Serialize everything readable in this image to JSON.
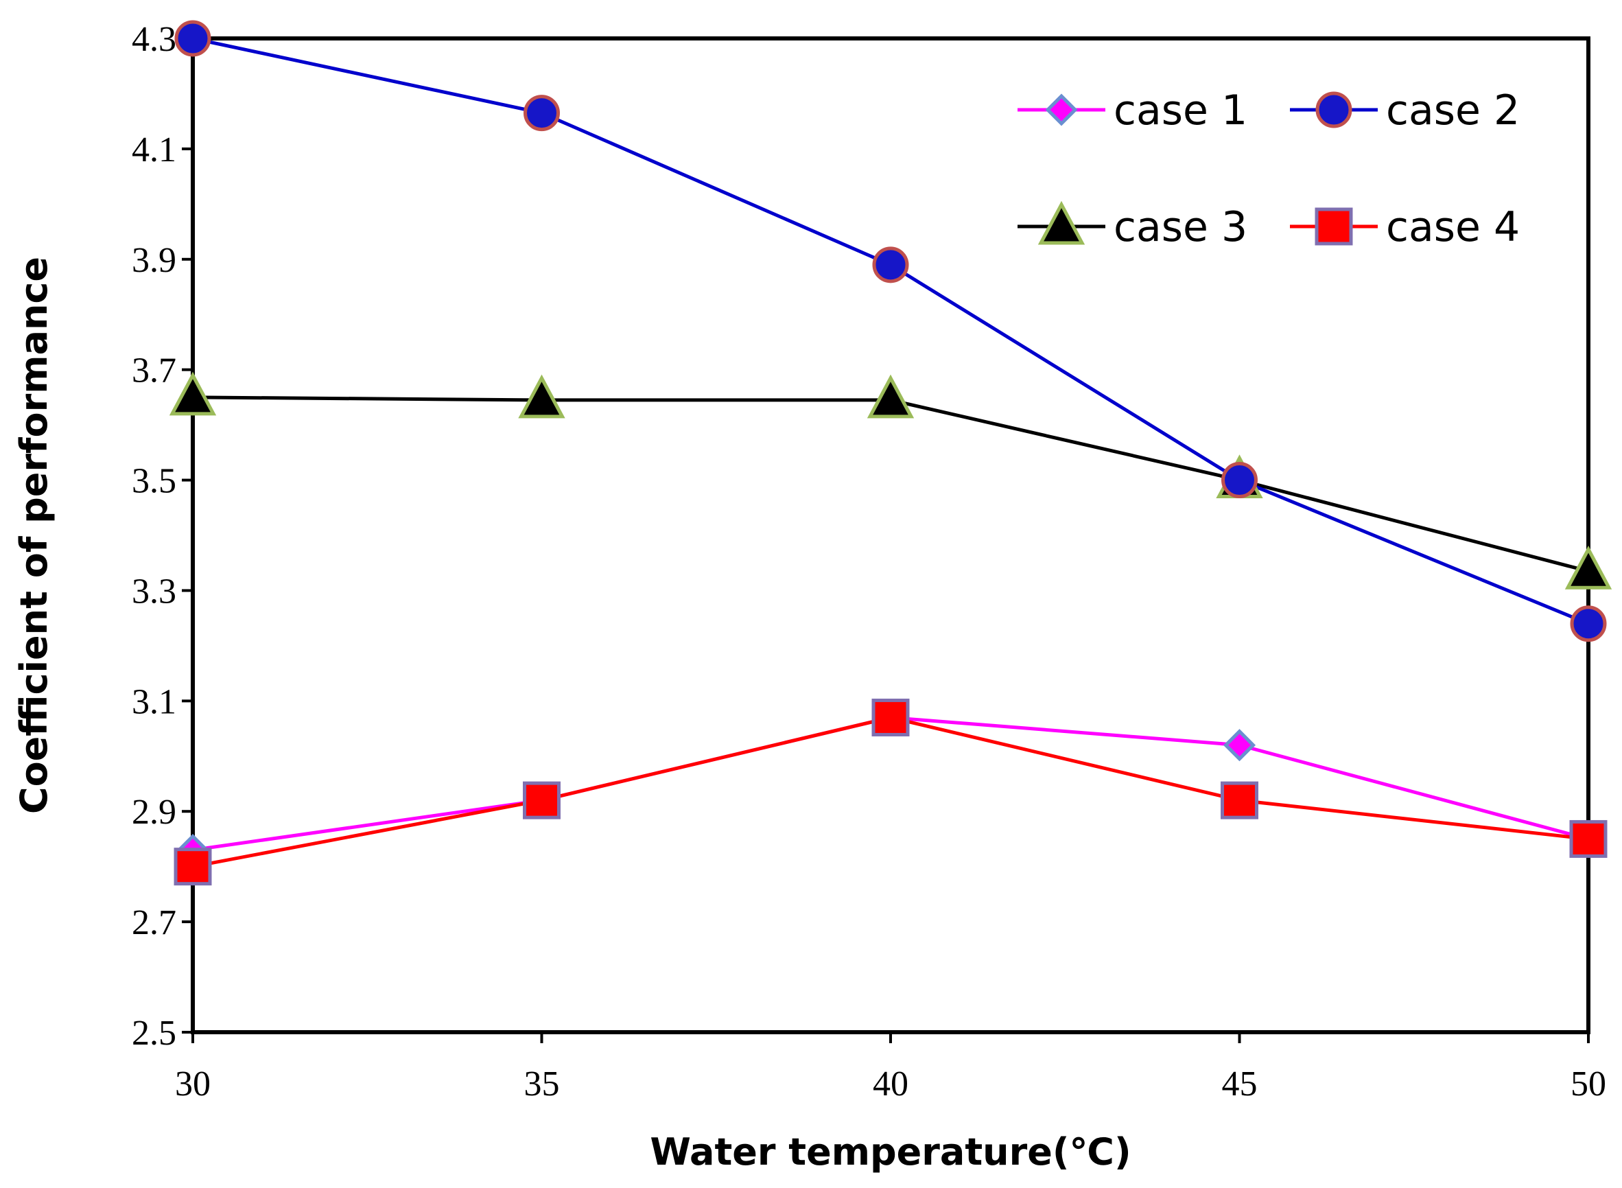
{
  "chart_data": {
    "type": "line",
    "title": "",
    "xlabel": "Water temperature(℃)",
    "ylabel": "Coefficient of performance",
    "x": [
      30,
      35,
      40,
      45,
      50
    ],
    "xlim": [
      30,
      50
    ],
    "ylim": [
      2.5,
      4.3
    ],
    "x_ticks": [
      "30",
      "35",
      "40",
      "45",
      "50"
    ],
    "y_ticks": [
      "2.5",
      "2.7",
      "2.9",
      "3.1",
      "3.3",
      "3.5",
      "3.7",
      "3.9",
      "4.1",
      "4.3"
    ],
    "grid": false,
    "legend_position": "top-right",
    "series": [
      {
        "name": "case 1",
        "values": [
          2.83,
          2.92,
          3.07,
          3.02,
          2.85
        ],
        "color": "#ff00ff",
        "marker": "diamond",
        "marker_fill": "#ff00ff",
        "marker_stroke": "#6a8fd0"
      },
      {
        "name": "case 2",
        "values": [
          4.3,
          4.165,
          3.89,
          3.5,
          3.24
        ],
        "color": "#0000cc",
        "marker": "circle",
        "marker_fill": "#1616c8",
        "marker_stroke": "#c0504d"
      },
      {
        "name": "case 3",
        "values": [
          3.65,
          3.645,
          3.645,
          3.5,
          3.335
        ],
        "color": "#000000",
        "marker": "triangle",
        "marker_fill": "#000000",
        "marker_stroke": "#9bbb59"
      },
      {
        "name": "case 4",
        "values": [
          2.8,
          2.92,
          3.07,
          2.92,
          2.85
        ],
        "color": "#ff0000",
        "marker": "square",
        "marker_fill": "#ff0000",
        "marker_stroke": "#7f6fb0"
      }
    ]
  }
}
